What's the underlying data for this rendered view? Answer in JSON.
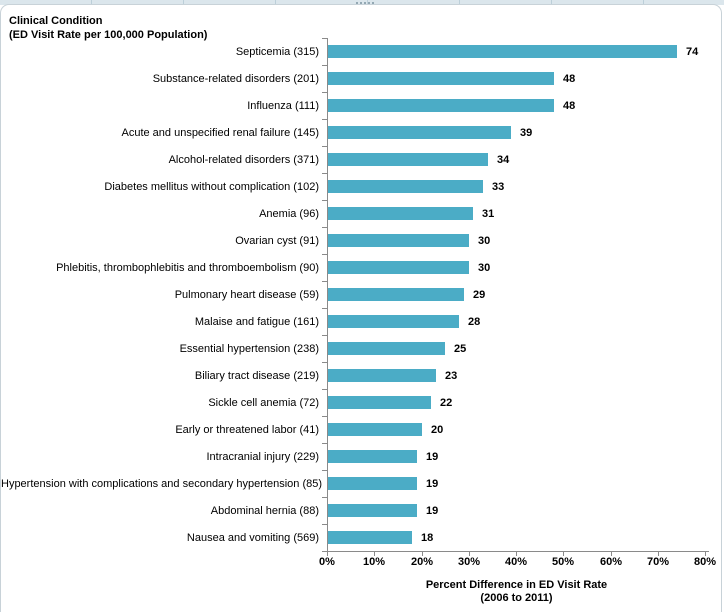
{
  "window": {
    "chart_object_label": "embedded-chart"
  },
  "chart_data": {
    "type": "bar",
    "orientation": "horizontal",
    "title_lines": [
      "Clinical Condition",
      "(ED Visit Rate per 100,000 Population)"
    ],
    "categories": [
      "Septicemia (315)",
      "Substance-related disorders (201)",
      "Influenza (111)",
      "Acute and unspecified renal failure (145)",
      "Alcohol-related disorders (371)",
      "Diabetes mellitus without complication (102)",
      "Anemia (96)",
      "Ovarian cyst (91)",
      "Phlebitis, thrombophlebitis and thromboembolism (90)",
      "Pulmonary heart disease (59)",
      "Malaise and fatigue (161)",
      "Essential hypertension (238)",
      "Biliary tract disease (219)",
      "Sickle cell anemia (72)",
      "Early or threatened labor (41)",
      "Intracranial injury (229)",
      "Hypertension with complications and secondary hypertension (85)",
      "Abdominal hernia (88)",
      "Nausea and vomiting (569)"
    ],
    "values": [
      74,
      48,
      48,
      39,
      34,
      33,
      31,
      30,
      30,
      29,
      28,
      25,
      23,
      22,
      20,
      19,
      19,
      19,
      18
    ],
    "value_labels": [
      "74",
      "48",
      "48",
      "39",
      "34",
      "33",
      "31",
      "30",
      "30",
      "29",
      "28",
      "25",
      "23",
      "22",
      "20",
      "19",
      "19",
      "19",
      "18"
    ],
    "x_ticks": [
      "0%",
      "10%",
      "20%",
      "30%",
      "40%",
      "50%",
      "60%",
      "70%",
      "80%"
    ],
    "xlim": [
      0,
      80
    ],
    "xlabel_lines": [
      "Percent Difference in ED Visit Rate",
      "(2006 to 2011)"
    ],
    "grid": false,
    "legend": null,
    "bar_color": "#4BACC6",
    "axis_color": "#8A8A8A"
  }
}
